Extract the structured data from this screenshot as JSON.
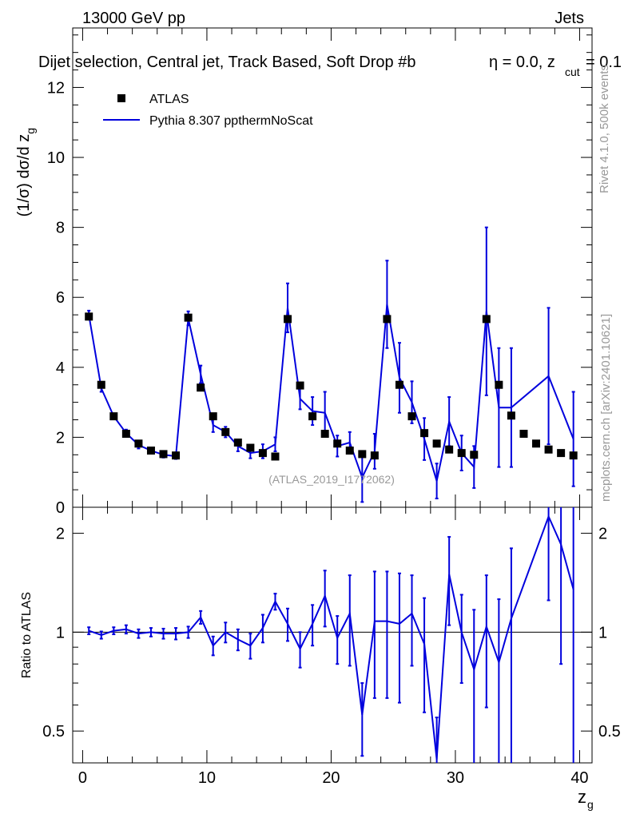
{
  "header": {
    "left": "13000 GeV pp",
    "right": "Jets",
    "title": "Dijet selection, Central jet, Track Based, Soft Drop #b",
    "title_suffix_1": "η = 0.0, z",
    "title_suffix_sub": "cut",
    "title_suffix_2": " = 0.1"
  },
  "side_labels": {
    "rivet": "Rivet 4.1.0,  500k events",
    "mcplots": "mcplots.cern.ch [arXiv:2401.10621]"
  },
  "watermark": "(ATLAS_2019_I1772062)",
  "legend": {
    "data_label": "ATLAS",
    "mc_label": "Pythia 8.307 ppthermNoScat"
  },
  "colors": {
    "mc": "#0000dd",
    "data": "#000000",
    "axis": "#000000",
    "label_grey": "#999999"
  },
  "chart_data": {
    "type": "line",
    "title": "Dijet selection, Central jet, Track Based, Soft Drop #b η = 0.0, z_cut = 0.1",
    "xlabel": "z",
    "xlabel_sub": "g",
    "ylabel_main": "(1/σ) dσ/d z",
    "ylabel_main_sub": "g",
    "ylabel_ratio": "Ratio to ATLAS",
    "xlim": [
      -0.8,
      41.0
    ],
    "ylim_main": [
      0,
      13.7
    ],
    "ylim_ratio": [
      0.4,
      2.4
    ],
    "main_yticks": [
      "0",
      "2",
      "4",
      "6",
      "8",
      "10",
      "12"
    ],
    "main_ytick_values": [
      0,
      2,
      4,
      6,
      8,
      10,
      12
    ],
    "ratio_yticks": [
      "0.5",
      "1",
      "2"
    ],
    "ratio_ytick_values": [
      0.5,
      1,
      2
    ],
    "xticks": [
      "0",
      "10",
      "20",
      "30",
      "40"
    ],
    "xtick_values": [
      0,
      10,
      20,
      30,
      40
    ],
    "x": [
      0.5,
      1.5,
      2.5,
      3.5,
      4.5,
      5.5,
      6.5,
      7.5,
      8.5,
      9.5,
      10.5,
      11.5,
      12.5,
      13.5,
      14.5,
      15.5,
      16.5,
      17.5,
      18.5,
      19.5,
      20.5,
      21.5,
      22.5,
      23.5,
      24.5,
      25.5,
      26.5,
      27.5,
      28.5,
      29.5,
      30.5,
      31.5,
      32.5,
      33.5,
      34.5,
      35.5,
      36.5,
      37.5,
      38.5,
      39.5
    ],
    "series": [
      {
        "name": "ATLAS",
        "style": "markers",
        "values": [
          5.45,
          3.5,
          2.6,
          2.1,
          1.82,
          1.62,
          1.52,
          1.48,
          5.42,
          3.42,
          2.6,
          2.15,
          1.85,
          1.7,
          1.55,
          1.45,
          5.38,
          3.48,
          2.6,
          2.1,
          1.82,
          1.62,
          1.52,
          1.48,
          5.38,
          3.5,
          2.6,
          2.12,
          1.82,
          1.65,
          1.55,
          1.5,
          5.38,
          3.5,
          2.62,
          2.1,
          1.82,
          1.65,
          1.55,
          1.48
        ]
      },
      {
        "name": "Pythia 8.307 ppthermNoScat",
        "style": "line",
        "values": [
          5.5,
          3.4,
          2.6,
          2.12,
          1.78,
          1.62,
          1.5,
          1.46,
          5.4,
          3.8,
          2.35,
          2.15,
          1.75,
          1.55,
          1.6,
          1.8,
          5.7,
          3.1,
          2.75,
          2.7,
          1.75,
          1.85,
          0.85,
          1.6,
          5.8,
          3.7,
          3.0,
          1.95,
          0.75,
          2.45,
          1.55,
          1.15,
          5.6,
          2.85,
          2.85,
          null,
          null,
          3.75,
          null,
          1.95
        ],
        "errors": [
          0.12,
          0.1,
          0.08,
          0.1,
          0.1,
          0.08,
          0.08,
          0.08,
          0.2,
          0.25,
          0.2,
          0.15,
          0.15,
          0.15,
          0.2,
          0.2,
          0.7,
          0.3,
          0.4,
          0.6,
          0.3,
          0.3,
          0.7,
          0.5,
          1.25,
          1.0,
          0.6,
          0.6,
          0.5,
          0.7,
          0.5,
          0.6,
          2.4,
          1.7,
          1.7,
          null,
          null,
          1.95,
          null,
          1.35
        ]
      }
    ],
    "ratio": {
      "values": [
        1.01,
        0.98,
        1.01,
        1.02,
        0.99,
        1.0,
        0.99,
        0.99,
        1.0,
        1.11,
        0.91,
        1.0,
        0.95,
        0.91,
        1.03,
        1.24,
        1.06,
        0.89,
        1.06,
        1.29,
        0.96,
        1.14,
        0.56,
        1.08,
        1.08,
        1.06,
        1.14,
        0.92,
        0.41,
        1.5,
        1.0,
        0.77,
        1.04,
        0.81,
        1.1,
        null,
        null,
        2.25,
        1.85,
        1.35
      ],
      "errors": [
        0.025,
        0.025,
        0.025,
        0.03,
        0.03,
        0.03,
        0.035,
        0.04,
        0.04,
        0.05,
        0.06,
        0.07,
        0.07,
        0.08,
        0.1,
        0.07,
        0.12,
        0.11,
        0.15,
        0.25,
        0.16,
        0.35,
        0.14,
        0.45,
        0.45,
        0.45,
        0.35,
        0.35,
        0.14,
        0.45,
        0.3,
        0.4,
        0.45,
        0.45,
        0.7,
        null,
        null,
        1.0,
        1.05,
        1.35
      ]
    },
    "reference_line": 1
  }
}
